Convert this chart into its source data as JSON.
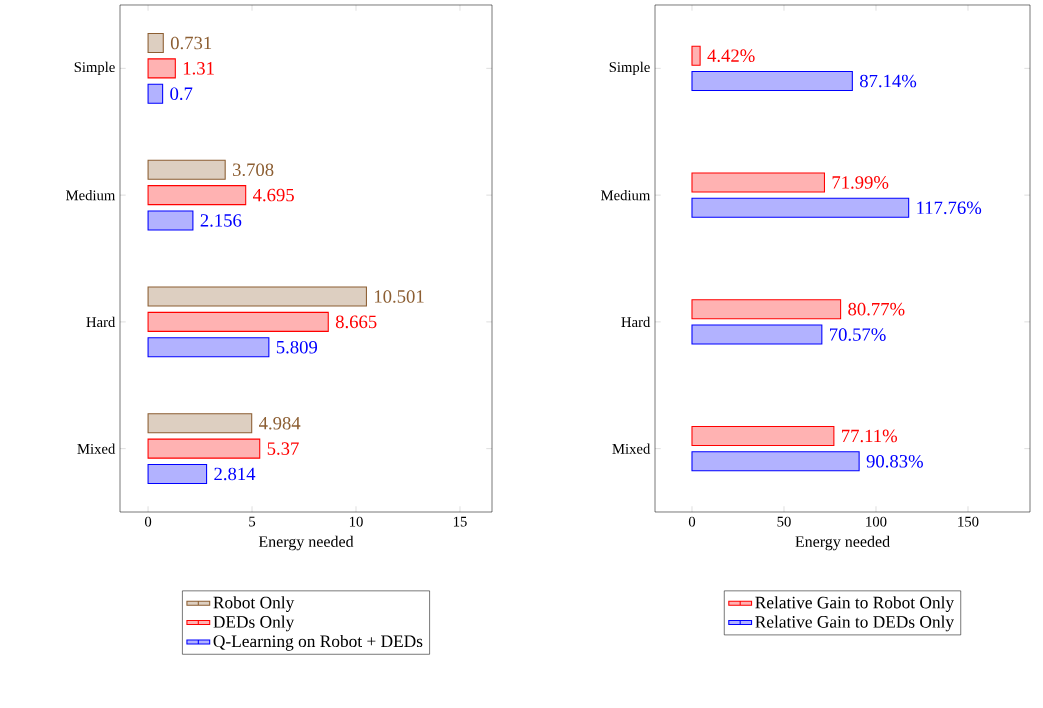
{
  "chart_data": [
    {
      "type": "bar",
      "orientation": "horizontal",
      "xlabel": "Energy needed",
      "categories": [
        "Simple",
        "Medium",
        "Hard",
        "Mixed"
      ],
      "xlim": [
        -1.35,
        16.54
      ],
      "xticks": [
        0,
        5,
        10,
        15
      ],
      "legend": "bottom",
      "grid": false,
      "series": [
        {
          "name": "Robot Only",
          "color": "#8c5e32",
          "values": [
            0.731,
            3.708,
            10.501,
            4.984
          ],
          "value_labels": [
            "0.731",
            "3.708",
            "10.501",
            "4.984"
          ]
        },
        {
          "name": "DEDs Only",
          "color": "#ff0000",
          "values": [
            1.31,
            4.695,
            8.665,
            5.37
          ],
          "value_labels": [
            "1.31",
            "4.695",
            "8.665",
            "5.37"
          ]
        },
        {
          "name": "Q-Learning on Robot + DEDs",
          "color": "#0000ff",
          "values": [
            0.7,
            2.156,
            5.809,
            2.814
          ],
          "value_labels": [
            "0.7",
            "2.156",
            "5.809",
            "2.814"
          ]
        }
      ]
    },
    {
      "type": "bar",
      "orientation": "horizontal",
      "xlabel": "Energy needed",
      "categories": [
        "Simple",
        "Medium",
        "Hard",
        "Mixed"
      ],
      "xlim": [
        -20.1,
        183.7
      ],
      "xticks": [
        0,
        50,
        100,
        150
      ],
      "legend": "bottom",
      "grid": false,
      "series": [
        {
          "name": "Relative Gain to Robot Only",
          "color": "#ff0000",
          "values": [
            4.42,
            71.99,
            80.77,
            77.11
          ],
          "value_labels": [
            "4.42%",
            "71.99%",
            "80.77%",
            "77.11%"
          ]
        },
        {
          "name": "Relative Gain to DEDs Only",
          "color": "#0000ff",
          "values": [
            87.14,
            117.76,
            70.57,
            90.83
          ],
          "value_labels": [
            "87.14%",
            "117.76%",
            "70.57%",
            "90.83%"
          ]
        }
      ]
    }
  ]
}
